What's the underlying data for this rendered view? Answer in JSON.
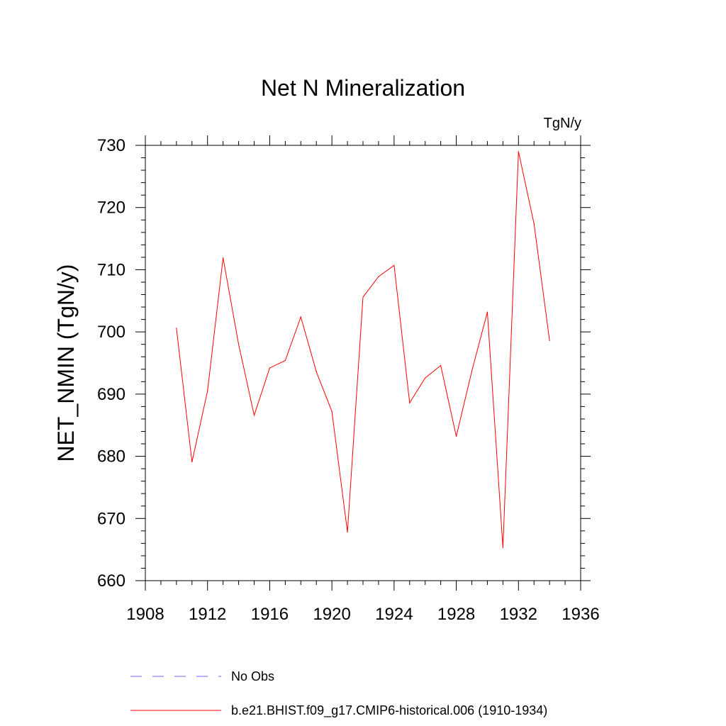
{
  "chart_data": {
    "type": "line",
    "title": "Net N Mineralization",
    "units": "TgN/y",
    "ylabel": "NET_NMIN  (TgN/y)",
    "xlabel": "",
    "xlim": [
      1908,
      1936
    ],
    "ylim": [
      660,
      730
    ],
    "x_ticks": [
      1908,
      1912,
      1916,
      1920,
      1924,
      1928,
      1932,
      1936
    ],
    "y_ticks": [
      660,
      670,
      680,
      690,
      700,
      710,
      720,
      730
    ],
    "grid": false,
    "legend_position": "bottom",
    "series": [
      {
        "name": "b.e21.BHIST.f09_g17.CMIP6-historical.006 (1910-1934)",
        "color": "#ff0000",
        "style": "solid",
        "x": [
          1910,
          1911,
          1912,
          1913,
          1914,
          1915,
          1916,
          1917,
          1918,
          1919,
          1920,
          1921,
          1922,
          1923,
          1924,
          1925,
          1926,
          1927,
          1928,
          1929,
          1930,
          1931,
          1932,
          1933,
          1934
        ],
        "y": [
          700.6,
          679.1,
          690.5,
          711.9,
          698.0,
          686.6,
          694.2,
          695.4,
          702.4,
          693.6,
          687.2,
          667.8,
          705.6,
          708.9,
          710.7,
          688.6,
          692.6,
          694.6,
          683.2,
          693.7,
          703.2,
          665.3,
          729.0,
          717.4,
          698.6
        ]
      }
    ],
    "legend": [
      {
        "label": "No Obs",
        "color": "#6a6aff",
        "style": "dashed"
      },
      {
        "label": "b.e21.BHIST.f09_g17.CMIP6-historical.006 (1910-1934)",
        "color": "#ff0000",
        "style": "solid"
      }
    ]
  }
}
